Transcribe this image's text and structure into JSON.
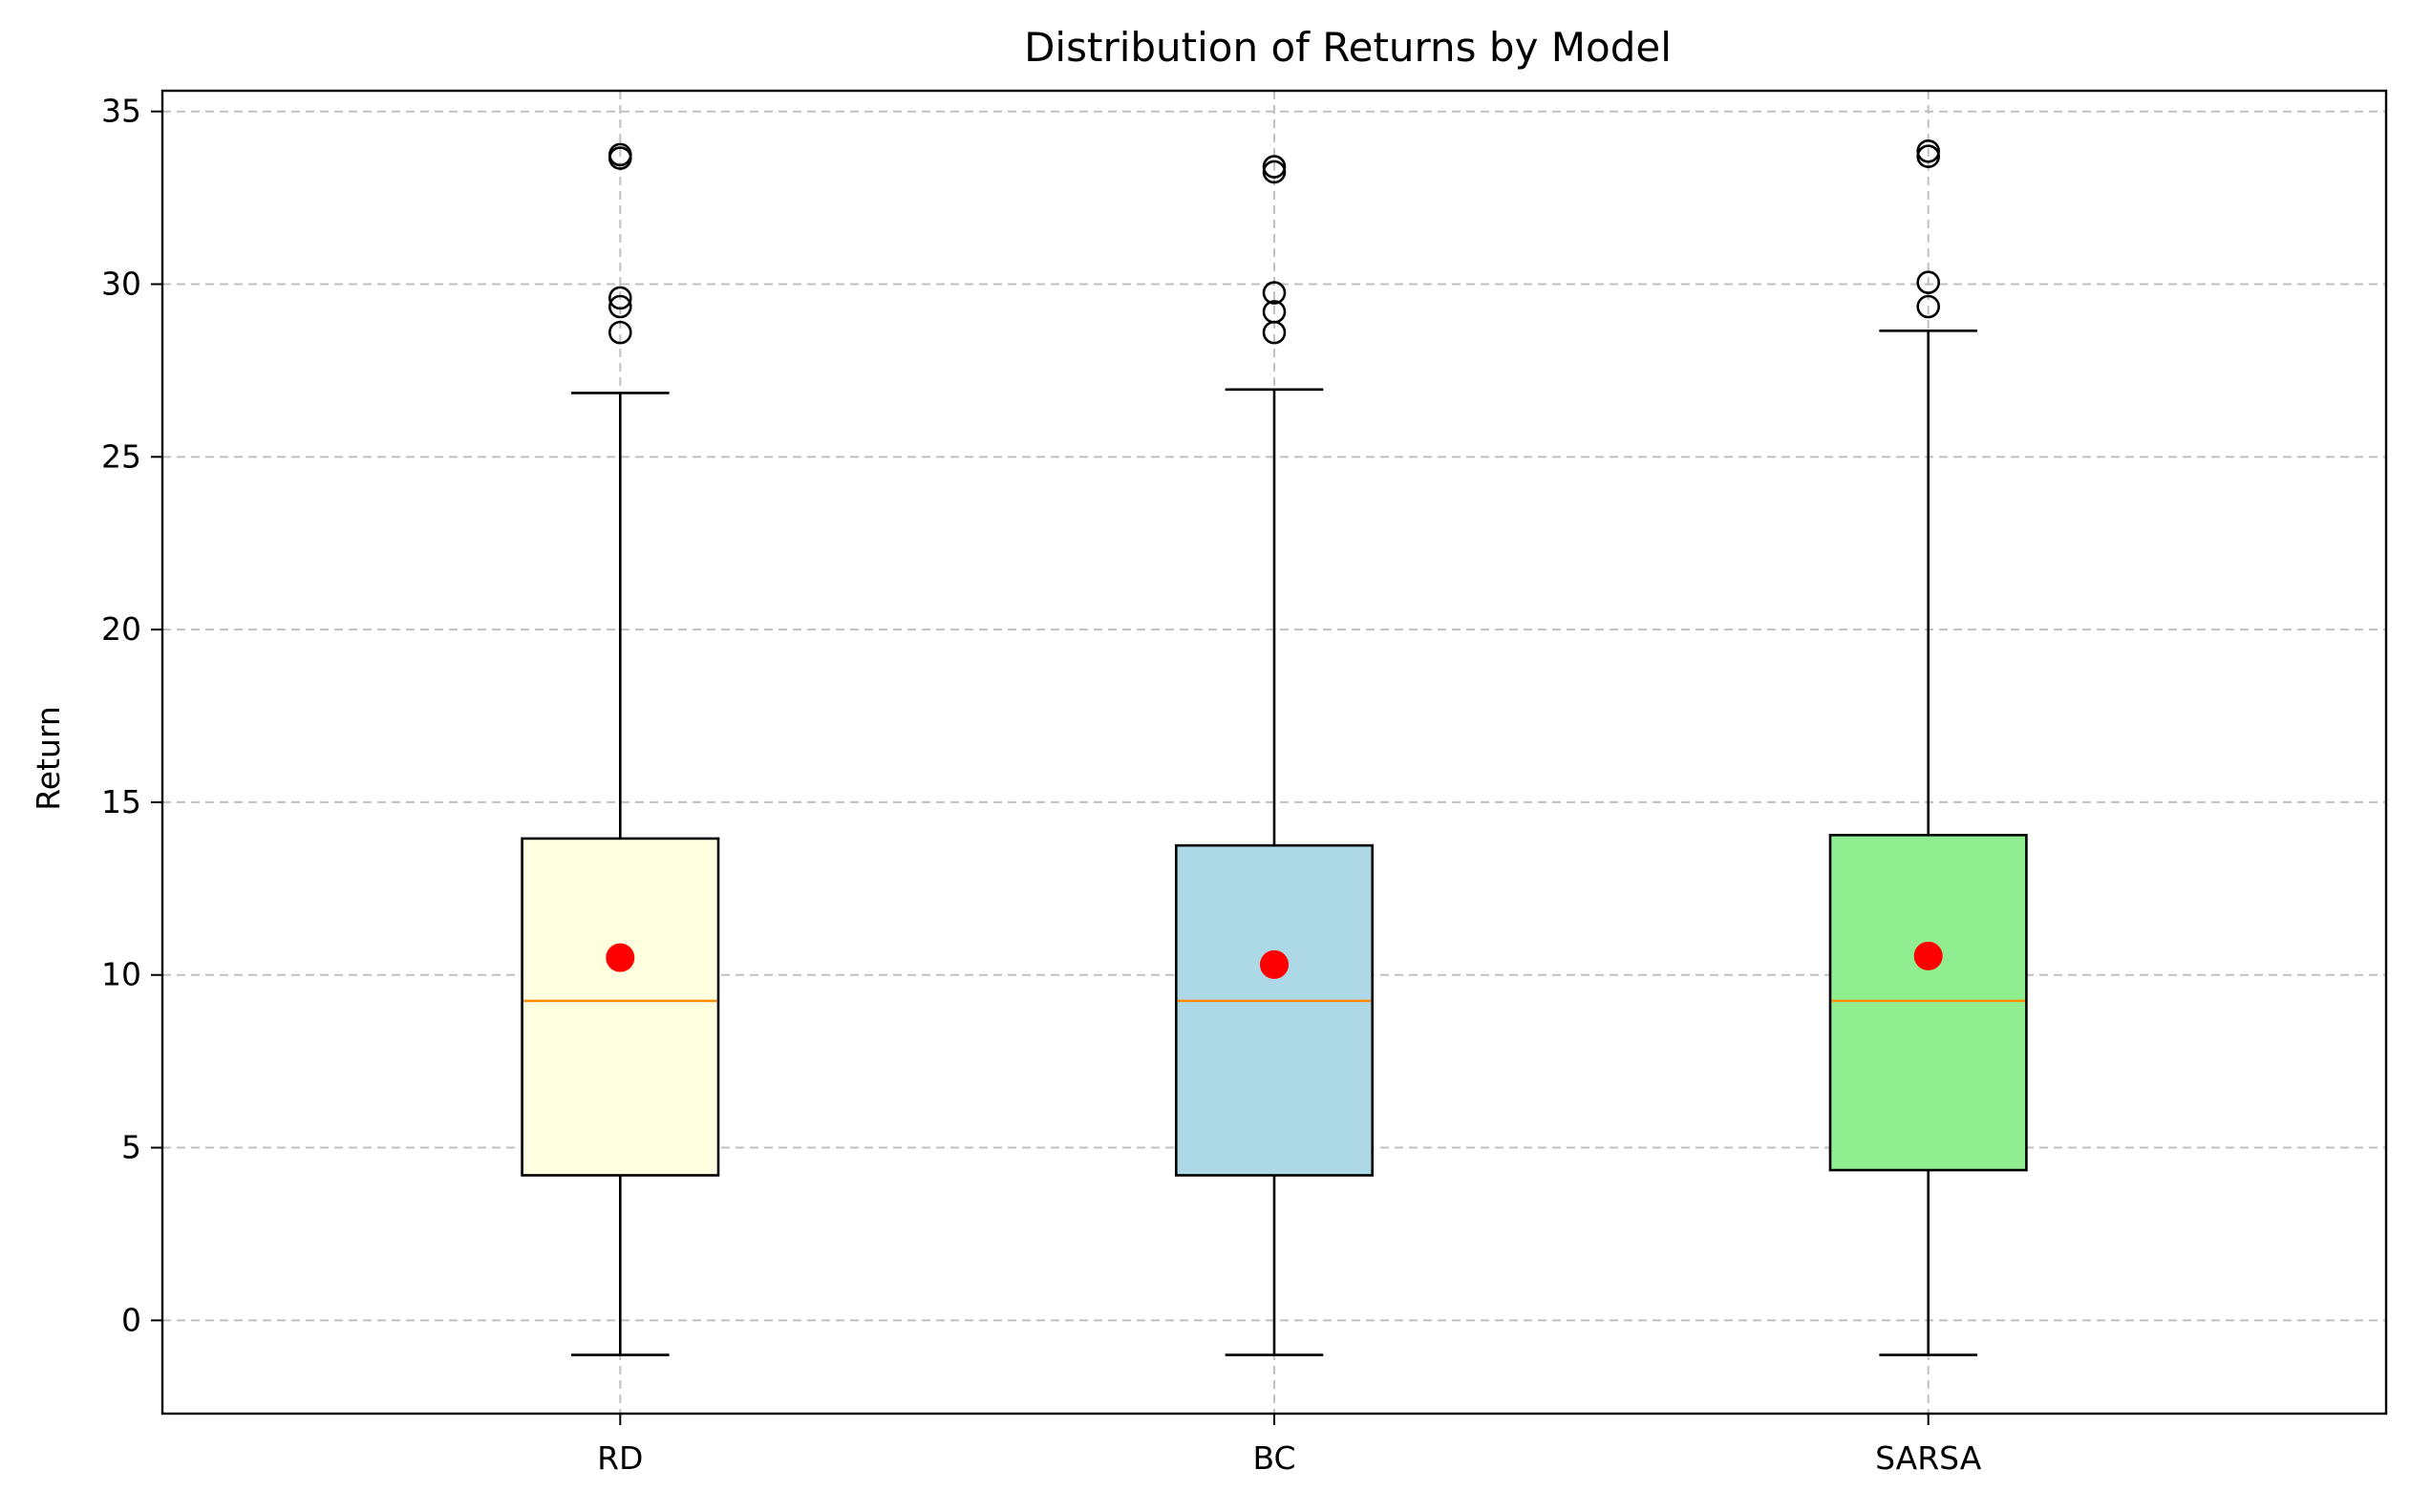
{
  "chart_data": {
    "type": "box",
    "title": "Distribution of Returns by Model",
    "xlabel": "",
    "ylabel": "Return",
    "ylim": [
      -2.7,
      35.6
    ],
    "yticks": [
      0,
      5,
      10,
      15,
      20,
      25,
      30,
      35
    ],
    "grid": true,
    "categories": [
      "RD",
      "BC",
      "SARSA"
    ],
    "series": [
      {
        "category": "RD",
        "fill": "#ffffe0",
        "whisker_low": -1.0,
        "q1": 4.2,
        "median": 9.25,
        "q3": 13.95,
        "whisker_high": 26.85,
        "mean": 10.5,
        "outliers": [
          28.6,
          29.35,
          29.6,
          33.65,
          33.75
        ]
      },
      {
        "category": "BC",
        "fill": "#add8e6",
        "whisker_low": -1.0,
        "q1": 4.2,
        "median": 9.25,
        "q3": 13.75,
        "whisker_high": 26.95,
        "mean": 10.3,
        "outliers": [
          28.6,
          29.2,
          29.75,
          33.25,
          33.4
        ]
      },
      {
        "category": "SARSA",
        "fill": "#90ee90",
        "whisker_low": -1.0,
        "q1": 4.35,
        "median": 9.25,
        "q3": 14.05,
        "whisker_high": 28.65,
        "mean": 10.55,
        "outliers": [
          29.35,
          30.05,
          33.7,
          33.85
        ]
      }
    ],
    "colors": {
      "median": "#ff8c00",
      "mean": "#ff0000",
      "box_edge": "#000000",
      "grid": "#c0c0c0"
    }
  }
}
